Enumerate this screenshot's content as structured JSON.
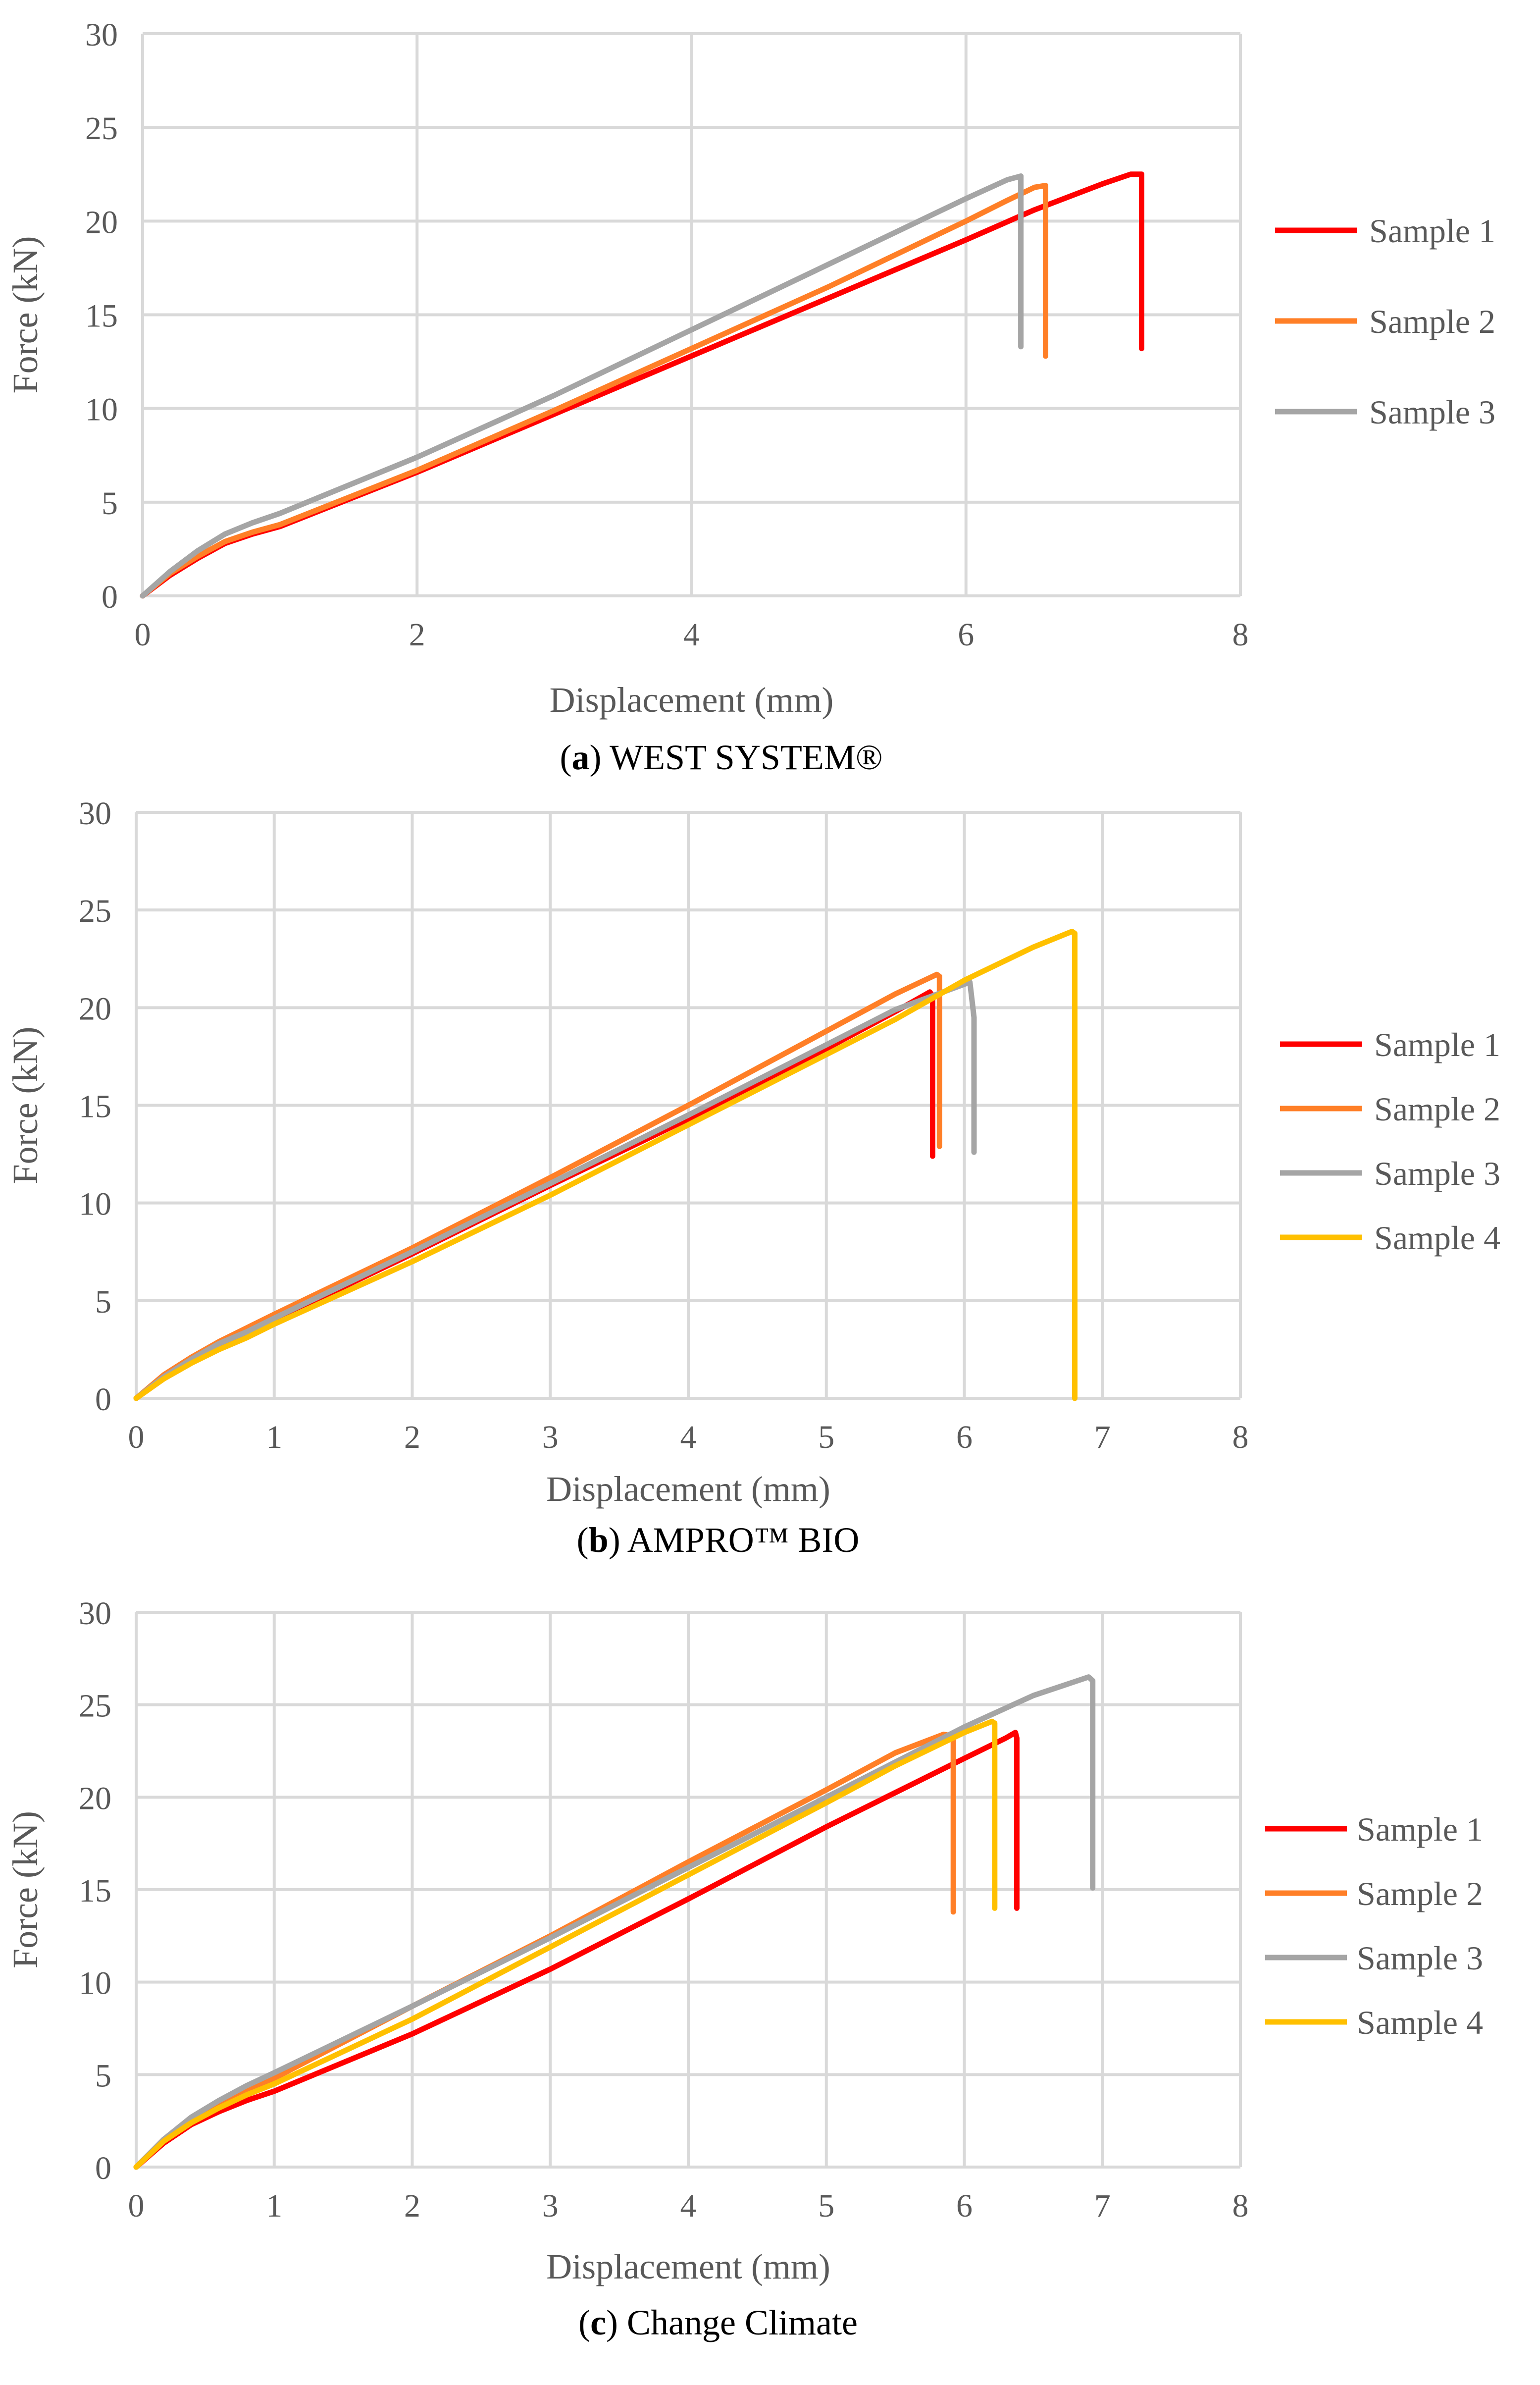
{
  "colors": {
    "sample_1": "#ff0000",
    "sample_2": "#ff7f27",
    "sample_3": "#a5a5a5",
    "sample_4": "#ffc000",
    "grid": "#d9d9d9",
    "text": "#595959"
  },
  "chart_data": [
    {
      "type": "line",
      "caption_letter": "a",
      "caption_text": " WEST SYSTEM®",
      "xlabel": "Displacement (mm)",
      "ylabel": "Force (kN)",
      "xlim": [
        0,
        8
      ],
      "ylim": [
        0,
        30
      ],
      "xticks": [
        0,
        2,
        4,
        6,
        8
      ],
      "yticks": [
        0,
        5,
        10,
        15,
        20,
        25,
        30
      ],
      "grid": true,
      "legend": "right",
      "series": [
        {
          "name": "Sample 1",
          "color": "#ff0000",
          "points": [
            [
              0,
              0
            ],
            [
              0.2,
              1.1
            ],
            [
              0.4,
              2.0
            ],
            [
              0.6,
              2.8
            ],
            [
              0.8,
              3.3
            ],
            [
              1.0,
              3.7
            ],
            [
              2.0,
              6.6
            ],
            [
              3.0,
              9.7
            ],
            [
              4.0,
              12.8
            ],
            [
              5.0,
              15.9
            ],
            [
              6.0,
              19.0
            ],
            [
              6.5,
              20.6
            ],
            [
              7.0,
              22.0
            ],
            [
              7.2,
              22.5
            ],
            [
              7.28,
              22.5
            ],
            [
              7.28,
              13.2
            ]
          ]
        },
        {
          "name": "Sample 2",
          "color": "#ff7f27",
          "points": [
            [
              0,
              0
            ],
            [
              0.2,
              1.2
            ],
            [
              0.4,
              2.1
            ],
            [
              0.6,
              2.9
            ],
            [
              0.8,
              3.4
            ],
            [
              1.0,
              3.8
            ],
            [
              2.0,
              6.7
            ],
            [
              3.0,
              9.9
            ],
            [
              4.0,
              13.2
            ],
            [
              5.0,
              16.5
            ],
            [
              6.0,
              20.0
            ],
            [
              6.3,
              21.1
            ],
            [
              6.5,
              21.8
            ],
            [
              6.58,
              21.9
            ],
            [
              6.58,
              12.8
            ]
          ]
        },
        {
          "name": "Sample 3",
          "color": "#a5a5a5",
          "points": [
            [
              0,
              0
            ],
            [
              0.2,
              1.3
            ],
            [
              0.4,
              2.4
            ],
            [
              0.6,
              3.3
            ],
            [
              0.8,
              3.9
            ],
            [
              1.0,
              4.4
            ],
            [
              2.0,
              7.4
            ],
            [
              3.0,
              10.7
            ],
            [
              4.0,
              14.2
            ],
            [
              5.0,
              17.7
            ],
            [
              6.0,
              21.2
            ],
            [
              6.3,
              22.2
            ],
            [
              6.4,
              22.4
            ],
            [
              6.4,
              13.3
            ]
          ]
        }
      ]
    },
    {
      "type": "line",
      "caption_letter": "b",
      "caption_text": " AMPRO™ BIO",
      "xlabel": "Displacement (mm)",
      "ylabel": "Force (kN)",
      "xlim": [
        0,
        8
      ],
      "ylim": [
        0,
        30
      ],
      "xticks": [
        0,
        1,
        2,
        3,
        4,
        5,
        6,
        7,
        8
      ],
      "yticks": [
        0,
        5,
        10,
        15,
        20,
        25,
        30
      ],
      "grid": true,
      "legend": "right",
      "series": [
        {
          "name": "Sample 1",
          "color": "#ff0000",
          "points": [
            [
              0,
              0
            ],
            [
              0.2,
              1.1
            ],
            [
              0.4,
              2.0
            ],
            [
              0.6,
              2.7
            ],
            [
              0.8,
              3.3
            ],
            [
              1.0,
              4.0
            ],
            [
              2.0,
              7.4
            ],
            [
              3.0,
              10.9
            ],
            [
              4.0,
              14.3
            ],
            [
              5.0,
              17.9
            ],
            [
              5.5,
              19.8
            ],
            [
              5.75,
              20.8
            ],
            [
              5.77,
              20.6
            ],
            [
              5.77,
              12.4
            ]
          ]
        },
        {
          "name": "Sample 2",
          "color": "#ff7f27",
          "points": [
            [
              0,
              0
            ],
            [
              0.2,
              1.2
            ],
            [
              0.4,
              2.1
            ],
            [
              0.6,
              2.9
            ],
            [
              0.8,
              3.6
            ],
            [
              1.0,
              4.3
            ],
            [
              2.0,
              7.7
            ],
            [
              3.0,
              11.3
            ],
            [
              4.0,
              15.0
            ],
            [
              5.0,
              18.8
            ],
            [
              5.5,
              20.7
            ],
            [
              5.8,
              21.7
            ],
            [
              5.82,
              21.6
            ],
            [
              5.82,
              12.9
            ]
          ]
        },
        {
          "name": "Sample 3",
          "color": "#a5a5a5",
          "points": [
            [
              0,
              0
            ],
            [
              0.2,
              1.1
            ],
            [
              0.4,
              2.0
            ],
            [
              0.6,
              2.8
            ],
            [
              0.8,
              3.4
            ],
            [
              1.0,
              4.1
            ],
            [
              2.0,
              7.5
            ],
            [
              3.0,
              11.0
            ],
            [
              4.0,
              14.5
            ],
            [
              5.0,
              18.1
            ],
            [
              5.5,
              19.9
            ],
            [
              6.0,
              21.2
            ],
            [
              6.04,
              21.3
            ],
            [
              6.07,
              19.5
            ],
            [
              6.07,
              12.6
            ]
          ]
        },
        {
          "name": "Sample 4",
          "color": "#ffc000",
          "points": [
            [
              0,
              0
            ],
            [
              0.2,
              1.0
            ],
            [
              0.4,
              1.8
            ],
            [
              0.6,
              2.5
            ],
            [
              0.8,
              3.1
            ],
            [
              1.0,
              3.8
            ],
            [
              2.0,
              7.0
            ],
            [
              3.0,
              10.4
            ],
            [
              4.0,
              14.0
            ],
            [
              5.0,
              17.6
            ],
            [
              5.5,
              19.4
            ],
            [
              6.0,
              21.4
            ],
            [
              6.5,
              23.1
            ],
            [
              6.78,
              23.9
            ],
            [
              6.8,
              23.8
            ],
            [
              6.8,
              0
            ]
          ]
        }
      ]
    },
    {
      "type": "line",
      "caption_letter": "c",
      "caption_text": " Change Climate",
      "xlabel": "Displacement (mm)",
      "ylabel": "Force (kN)",
      "xlim": [
        0,
        8
      ],
      "ylim": [
        0,
        30
      ],
      "xticks": [
        0,
        1,
        2,
        3,
        4,
        5,
        6,
        7,
        8
      ],
      "yticks": [
        0,
        5,
        10,
        15,
        20,
        25,
        30
      ],
      "grid": true,
      "legend": "right",
      "series": [
        {
          "name": "Sample 1",
          "color": "#ff0000",
          "points": [
            [
              0,
              0
            ],
            [
              0.2,
              1.3
            ],
            [
              0.4,
              2.3
            ],
            [
              0.6,
              3.0
            ],
            [
              0.8,
              3.6
            ],
            [
              1.0,
              4.1
            ],
            [
              2.0,
              7.2
            ],
            [
              3.0,
              10.7
            ],
            [
              4.0,
              14.5
            ],
            [
              5.0,
              18.4
            ],
            [
              6.0,
              22.1
            ],
            [
              6.3,
              23.2
            ],
            [
              6.37,
              23.5
            ],
            [
              6.38,
              23.2
            ],
            [
              6.38,
              14.0
            ]
          ]
        },
        {
          "name": "Sample 2",
          "color": "#ff7f27",
          "points": [
            [
              0,
              0
            ],
            [
              0.2,
              1.5
            ],
            [
              0.4,
              2.6
            ],
            [
              0.6,
              3.4
            ],
            [
              0.8,
              4.1
            ],
            [
              1.0,
              4.8
            ],
            [
              2.0,
              8.7
            ],
            [
              3.0,
              12.5
            ],
            [
              4.0,
              16.5
            ],
            [
              5.0,
              20.4
            ],
            [
              5.5,
              22.4
            ],
            [
              5.85,
              23.4
            ],
            [
              5.92,
              23.3
            ],
            [
              5.92,
              13.8
            ]
          ]
        },
        {
          "name": "Sample 3",
          "color": "#a5a5a5",
          "points": [
            [
              0,
              0
            ],
            [
              0.2,
              1.5
            ],
            [
              0.4,
              2.7
            ],
            [
              0.6,
              3.6
            ],
            [
              0.8,
              4.4
            ],
            [
              1.0,
              5.1
            ],
            [
              2.0,
              8.7
            ],
            [
              3.0,
              12.4
            ],
            [
              4.0,
              16.2
            ],
            [
              5.0,
              20.0
            ],
            [
              6.0,
              23.8
            ],
            [
              6.5,
              25.5
            ],
            [
              6.9,
              26.5
            ],
            [
              6.93,
              26.3
            ],
            [
              6.93,
              15.1
            ]
          ]
        },
        {
          "name": "Sample 4",
          "color": "#ffc000",
          "points": [
            [
              0,
              0
            ],
            [
              0.2,
              1.4
            ],
            [
              0.4,
              2.4
            ],
            [
              0.6,
              3.2
            ],
            [
              0.8,
              3.9
            ],
            [
              1.0,
              4.5
            ],
            [
              2.0,
              8.0
            ],
            [
              3.0,
              11.9
            ],
            [
              4.0,
              15.8
            ],
            [
              5.0,
              19.7
            ],
            [
              5.5,
              21.7
            ],
            [
              6.0,
              23.5
            ],
            [
              6.2,
              24.1
            ],
            [
              6.22,
              24.0
            ],
            [
              6.22,
              14.0
            ]
          ]
        }
      ]
    }
  ]
}
